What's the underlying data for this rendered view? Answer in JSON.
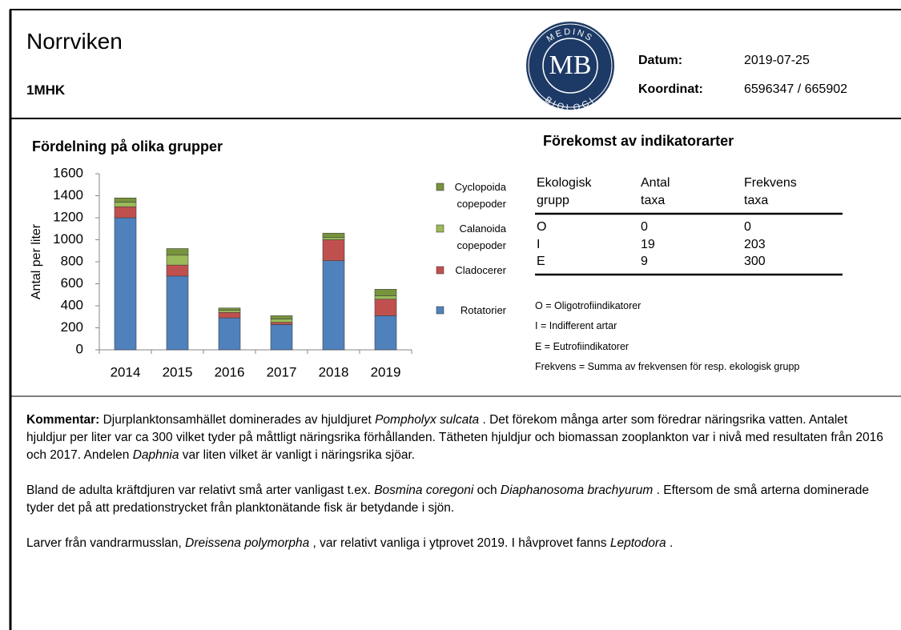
{
  "header": {
    "title": "Norrviken",
    "code": "1MHK",
    "logo": {
      "top": "MEDINS",
      "center": "MB",
      "bottom": "BIOLOGI"
    },
    "fields": [
      {
        "label": "Datum:",
        "value": "2019-07-25"
      },
      {
        "label": "Koordinat:",
        "value": "6596347 / 665902"
      }
    ]
  },
  "chart_data": {
    "type": "bar",
    "stacked": true,
    "title": "Fördelning på olika grupper",
    "y_label": "Antal per liter",
    "categories": [
      "2014",
      "2015",
      "2016",
      "2017",
      "2018",
      "2019"
    ],
    "series": [
      {
        "name": "Rotatorier",
        "color": "#4f81bd",
        "values": [
          1200,
          670,
          290,
          230,
          810,
          310
        ]
      },
      {
        "name": "Cladocerer",
        "color": "#c0504d",
        "values": [
          100,
          100,
          50,
          20,
          190,
          150
        ]
      },
      {
        "name": "Calanoida copepoder",
        "color": "#9bbb59",
        "values": [
          40,
          90,
          20,
          30,
          20,
          30
        ]
      },
      {
        "name": "Cyclopoida copepoder",
        "color": "#77933c",
        "values": [
          40,
          60,
          20,
          30,
          40,
          60
        ]
      }
    ],
    "ylim": [
      0,
      1600
    ],
    "yticks": [
      0,
      200,
      400,
      600,
      800,
      1000,
      1200,
      1400,
      1600
    ],
    "legend": "right"
  },
  "indicator": {
    "title": "Förekomst av indikatorarter",
    "header": [
      [
        "Ekologisk",
        "grupp"
      ],
      [
        "Antal",
        "taxa"
      ],
      [
        "Frekvens",
        "taxa"
      ]
    ],
    "rows": [
      [
        "O",
        "0",
        "0"
      ],
      [
        "I",
        "19",
        "203"
      ],
      [
        "E",
        "9",
        "300"
      ]
    ],
    "notes": [
      "O = Oligotrofiindikatorer",
      "I = Indifferent artar",
      "E = Eutrofiindikatorer",
      "Frekvens = Summa av frekvensen för resp. ekologisk grupp"
    ]
  },
  "comment": {
    "label": "Kommentar:",
    "paragraphs": [
      {
        "runs": [
          {
            "text": "Djurplanktonsamhället dominerades av hjuldjuret "
          },
          {
            "text": "Pompholyx sulcata",
            "italic": true
          },
          {
            "text": " . Det förekom många arter som föredrar näringsrika vatten. Antalet hjuldjur per liter var ca 300 vilket tyder på måttligt näringsrika förhållanden. Tätheten hjuldjur och biomassan zooplankton var i nivå med resultaten från 2016 och 2017.  Andelen "
          },
          {
            "text": "Daphnia",
            "italic": true
          },
          {
            "text": " var liten vilket är vanligt i näringsrika sjöar."
          }
        ]
      },
      {
        "runs": [
          {
            "text": "Bland de adulta kräftdjuren var relativt små arter vanligast t.ex. "
          },
          {
            "text": "Bosmina coregoni",
            "italic": true
          },
          {
            "text": " och "
          },
          {
            "text": "Diaphanosoma brachyurum",
            "italic": true
          },
          {
            "text": " . Eftersom de små arterna dominerade tyder det på att predationstrycket från planktonätande fisk är betydande i sjön."
          }
        ]
      },
      {
        "runs": [
          {
            "text": "Larver från vandrarmusslan, "
          },
          {
            "text": "Dreissena polymorpha",
            "italic": true
          },
          {
            "text": " , var relativt vanliga i ytprovet 2019. I håvprovet fanns "
          },
          {
            "text": "Leptodora",
            "italic": true
          },
          {
            "text": " ."
          }
        ]
      }
    ]
  }
}
